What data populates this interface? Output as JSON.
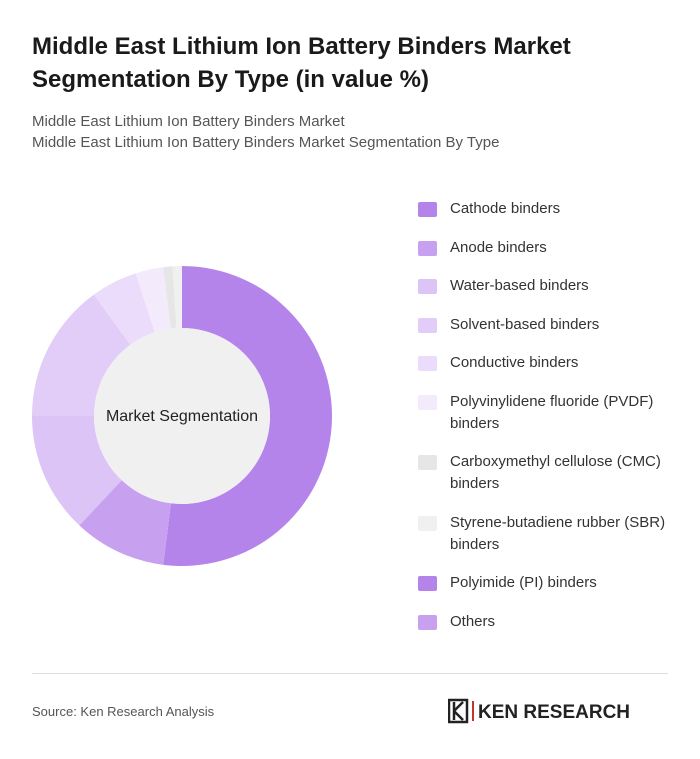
{
  "chart_data": {
    "type": "donut",
    "title": "Middle East Lithium Ion Battery Binders Market Segmentation By Type (in value %)",
    "subtitle": [
      "Middle East Lithium Ion Battery Binders Market",
      "Middle East Lithium Ion Battery Binders Market Segmentation By Type"
    ],
    "center_label": "Market Segmentation",
    "categories": [
      "Cathode binders",
      "Anode binders",
      "Water-based binders",
      "Solvent-based binders",
      "Conductive binders",
      "Polyvinylidene fluoride (PVDF) binders",
      "Carboxymethyl cellulose (CMC) binders",
      "Styrene-butadiene rubber (SBR) binders",
      "Polyimide (PI) binders",
      "Others"
    ],
    "values": [
      52,
      10,
      13,
      15,
      5,
      3,
      1,
      1,
      0,
      0
    ],
    "colors": [
      "#b584ea",
      "#c7a0f0",
      "#dcc4f6",
      "#e1cdf7",
      "#eadcfa",
      "#f3ebfc",
      "#e6e6e6",
      "#f0f0f0",
      "#b584ea",
      "#c7a0f0"
    ],
    "source": "Source: Ken Research Analysis",
    "logo": "KEN RESEARCH"
  }
}
